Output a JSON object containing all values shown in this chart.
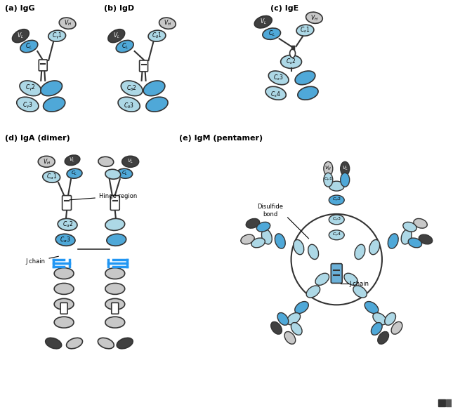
{
  "bg_color": "#ffffff",
  "light_blue": "#add8e6",
  "med_blue": "#4fa8d8",
  "dark_blue": "#1a6fa0",
  "dark_gray": "#404040",
  "mid_gray": "#909090",
  "light_gray": "#c8c8c8",
  "outline": "#333333",
  "panel_labels": [
    "(a) IgG",
    "(b) IgD",
    "(c) IgE",
    "(d) IgA (dimer)",
    "(e) IgM (pentamer)"
  ]
}
